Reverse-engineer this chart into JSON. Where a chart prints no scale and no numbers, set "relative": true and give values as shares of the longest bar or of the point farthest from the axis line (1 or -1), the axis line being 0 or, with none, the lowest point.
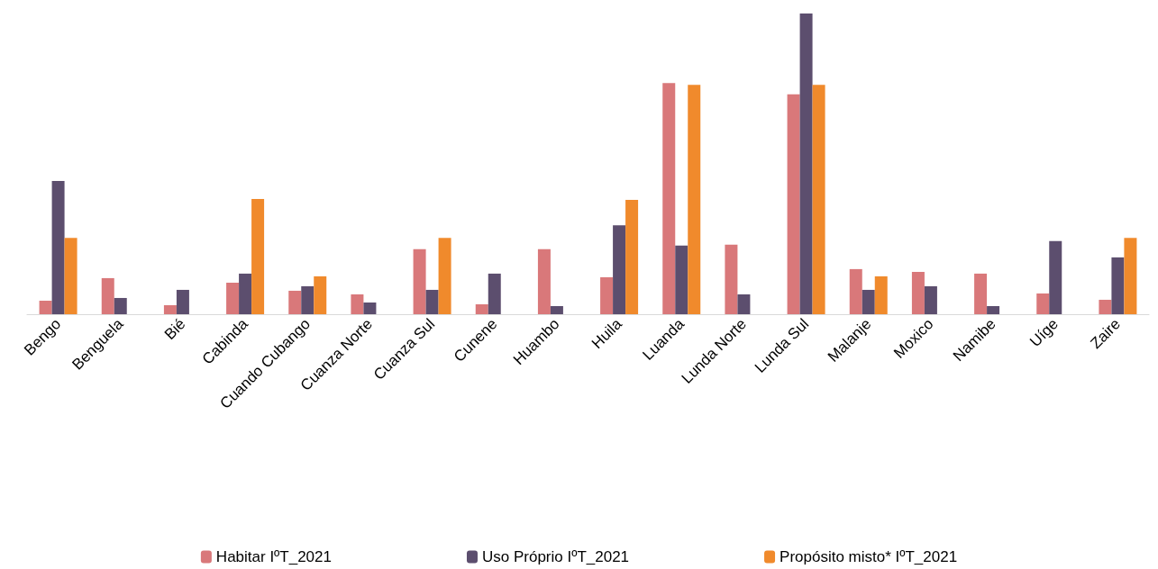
{
  "chart_data": {
    "type": "bar",
    "relative": true,
    "legend": "bottom",
    "categories": [
      "Bengo",
      "Benguela",
      "Bié",
      "Cabinda",
      "Cuando Cubango",
      "Cuanza Norte",
      "Cuanza Sul",
      "Cunene",
      "Huambo",
      "Huila",
      "Luanda",
      "Lunda Norte",
      "Lunda Sul",
      "Malanje",
      "Moxico",
      "Namibe",
      "Uíge",
      "Zaire"
    ],
    "series": [
      {
        "name": "Habitar IºT_2021",
        "color": "#d9787a",
        "values": [
          0.045,
          0.12,
          0.03,
          0.105,
          0.078,
          0.066,
          0.216,
          0.033,
          0.216,
          0.123,
          0.769,
          0.231,
          0.731,
          0.15,
          0.141,
          0.135,
          0.069,
          0.048
        ]
      },
      {
        "name": "Uso Próprio IºT_2021",
        "color": "#5c4e6e",
        "values": [
          0.443,
          0.054,
          0.081,
          0.135,
          0.093,
          0.039,
          0.081,
          0.135,
          0.027,
          0.296,
          0.228,
          0.066,
          1.0,
          0.081,
          0.093,
          0.027,
          0.243,
          0.189
        ]
      },
      {
        "name": "Propósito misto* IºT_2021",
        "color": "#f08a2c",
        "values": [
          0.254,
          0,
          0,
          0.383,
          0.126,
          0,
          0.254,
          0,
          0,
          0.38,
          0.763,
          0,
          0.763,
          0.126,
          0,
          0,
          0,
          0.254
        ]
      }
    ]
  }
}
